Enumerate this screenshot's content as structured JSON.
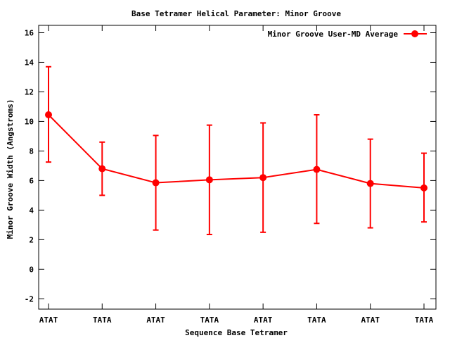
{
  "chart_data": {
    "type": "line",
    "title": "Base Tetramer Helical Parameter: Minor Groove",
    "xlabel": "Sequence Base Tetramer",
    "ylabel": "Minor Groove Width (Angstroms)",
    "categories": [
      "ATAT",
      "TATA",
      "ATAT",
      "TATA",
      "ATAT",
      "TATA",
      "ATAT",
      "TATA"
    ],
    "ylim": [
      -2.7,
      16.5
    ],
    "yticks": [
      -2,
      0,
      2,
      4,
      6,
      8,
      10,
      12,
      14,
      16
    ],
    "legend_position": "top-right",
    "series": [
      {
        "name": "Minor Groove User-MD Average",
        "color": "#ff0000",
        "values": [
          10.45,
          6.8,
          5.85,
          6.05,
          6.2,
          6.75,
          5.8,
          5.5
        ],
        "error_low": [
          7.25,
          5.0,
          2.65,
          2.35,
          2.5,
          3.1,
          2.8,
          3.2
        ],
        "error_high": [
          13.7,
          8.6,
          9.05,
          9.75,
          9.9,
          10.45,
          8.8,
          7.85
        ]
      }
    ]
  }
}
